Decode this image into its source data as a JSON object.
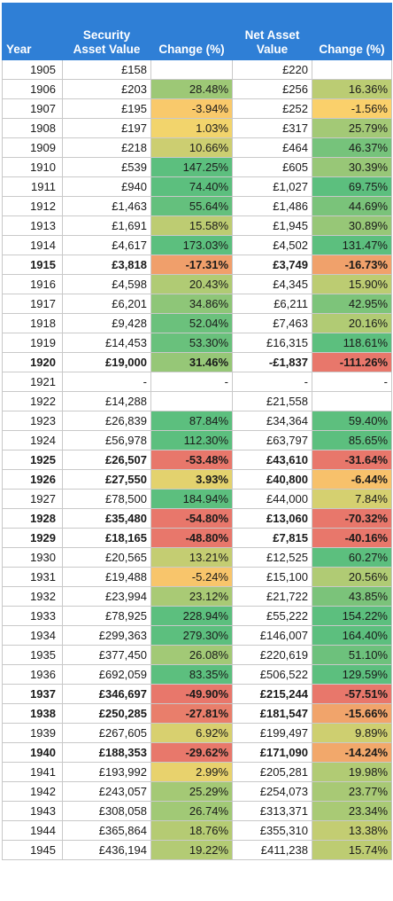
{
  "chart_data": {
    "type": "table",
    "columns": [
      "Year",
      "Security Asset Value",
      "Change (%)",
      "Net Asset Value",
      "Change (%)"
    ],
    "rows": [
      {
        "y": "1905",
        "sav": "£158",
        "savc": "",
        "nav": "£220",
        "navc": "",
        "b": false
      },
      {
        "y": "1906",
        "sav": "£203",
        "savc": "28.48%",
        "nav": "£256",
        "navc": "16.36%",
        "b": false
      },
      {
        "y": "1907",
        "sav": "£195",
        "savc": "-3.94%",
        "nav": "£252",
        "navc": "-1.56%",
        "b": false
      },
      {
        "y": "1908",
        "sav": "£197",
        "savc": "1.03%",
        "nav": "£317",
        "navc": "25.79%",
        "b": false
      },
      {
        "y": "1909",
        "sav": "£218",
        "savc": "10.66%",
        "nav": "£464",
        "navc": "46.37%",
        "b": false
      },
      {
        "y": "1910",
        "sav": "£539",
        "savc": "147.25%",
        "nav": "£605",
        "navc": "30.39%",
        "b": false
      },
      {
        "y": "1911",
        "sav": "£940",
        "savc": "74.40%",
        "nav": "£1,027",
        "navc": "69.75%",
        "b": false
      },
      {
        "y": "1912",
        "sav": "£1,463",
        "savc": "55.64%",
        "nav": "£1,486",
        "navc": "44.69%",
        "b": false
      },
      {
        "y": "1913",
        "sav": "£1,691",
        "savc": "15.58%",
        "nav": "£1,945",
        "navc": "30.89%",
        "b": false
      },
      {
        "y": "1914",
        "sav": "£4,617",
        "savc": "173.03%",
        "nav": "£4,502",
        "navc": "131.47%",
        "b": false
      },
      {
        "y": "1915",
        "sav": "£3,818",
        "savc": "-17.31%",
        "nav": "£3,749",
        "navc": "-16.73%",
        "b": true
      },
      {
        "y": "1916",
        "sav": "£4,598",
        "savc": "20.43%",
        "nav": "£4,345",
        "navc": "15.90%",
        "b": false
      },
      {
        "y": "1917",
        "sav": "£6,201",
        "savc": "34.86%",
        "nav": "£6,211",
        "navc": "42.95%",
        "b": false
      },
      {
        "y": "1918",
        "sav": "£9,428",
        "savc": "52.04%",
        "nav": "£7,463",
        "navc": "20.16%",
        "b": false
      },
      {
        "y": "1919",
        "sav": "£14,453",
        "savc": "53.30%",
        "nav": "£16,315",
        "navc": "118.61%",
        "b": false
      },
      {
        "y": "1920",
        "sav": "£19,000",
        "savc": "31.46%",
        "nav": "-£1,837",
        "navc": "-111.26%",
        "b": true
      },
      {
        "y": "1921",
        "sav": "-",
        "savc": "-",
        "nav": "-",
        "navc": "-",
        "b": false
      },
      {
        "y": "1922",
        "sav": "£14,288",
        "savc": "",
        "nav": "£21,558",
        "navc": "",
        "b": false
      },
      {
        "y": "1923",
        "sav": "£26,839",
        "savc": "87.84%",
        "nav": "£34,364",
        "navc": "59.40%",
        "b": false
      },
      {
        "y": "1924",
        "sav": "£56,978",
        "savc": "112.30%",
        "nav": "£63,797",
        "navc": "85.65%",
        "b": false
      },
      {
        "y": "1925",
        "sav": "£26,507",
        "savc": "-53.48%",
        "nav": "£43,610",
        "navc": "-31.64%",
        "b": true
      },
      {
        "y": "1926",
        "sav": "£27,550",
        "savc": "3.93%",
        "nav": "£40,800",
        "navc": "-6.44%",
        "b": true
      },
      {
        "y": "1927",
        "sav": "£78,500",
        "savc": "184.94%",
        "nav": "£44,000",
        "navc": "7.84%",
        "b": false
      },
      {
        "y": "1928",
        "sav": "£35,480",
        "savc": "-54.80%",
        "nav": "£13,060",
        "navc": "-70.32%",
        "b": true
      },
      {
        "y": "1929",
        "sav": "£18,165",
        "savc": "-48.80%",
        "nav": "£7,815",
        "navc": "-40.16%",
        "b": true
      },
      {
        "y": "1930",
        "sav": "£20,565",
        "savc": "13.21%",
        "nav": "£12,525",
        "navc": "60.27%",
        "b": false
      },
      {
        "y": "1931",
        "sav": "£19,488",
        "savc": "-5.24%",
        "nav": "£15,100",
        "navc": "20.56%",
        "b": false
      },
      {
        "y": "1932",
        "sav": "£23,994",
        "savc": "23.12%",
        "nav": "£21,722",
        "navc": "43.85%",
        "b": false
      },
      {
        "y": "1933",
        "sav": "£78,925",
        "savc": "228.94%",
        "nav": "£55,222",
        "navc": "154.22%",
        "b": false
      },
      {
        "y": "1934",
        "sav": "£299,363",
        "savc": "279.30%",
        "nav": "£146,007",
        "navc": "164.40%",
        "b": false
      },
      {
        "y": "1935",
        "sav": "£377,450",
        "savc": "26.08%",
        "nav": "£220,619",
        "navc": "51.10%",
        "b": false
      },
      {
        "y": "1936",
        "sav": "£692,059",
        "savc": "83.35%",
        "nav": "£506,522",
        "navc": "129.59%",
        "b": false
      },
      {
        "y": "1937",
        "sav": "£346,697",
        "savc": "-49.90%",
        "nav": "£215,244",
        "navc": "-57.51%",
        "b": true
      },
      {
        "y": "1938",
        "sav": "£250,285",
        "savc": "-27.81%",
        "nav": "£181,547",
        "navc": "-15.66%",
        "b": true
      },
      {
        "y": "1939",
        "sav": "£267,605",
        "savc": "6.92%",
        "nav": "£199,497",
        "navc": "9.89%",
        "b": false
      },
      {
        "y": "1940",
        "sav": "£188,353",
        "savc": "-29.62%",
        "nav": "£171,090",
        "navc": "-14.24%",
        "b": true
      },
      {
        "y": "1941",
        "sav": "£193,992",
        "savc": "2.99%",
        "nav": "£205,281",
        "navc": "19.98%",
        "b": false
      },
      {
        "y": "1942",
        "sav": "£243,057",
        "savc": "25.29%",
        "nav": "£254,073",
        "navc": "23.77%",
        "b": false
      },
      {
        "y": "1943",
        "sav": "£308,058",
        "savc": "26.74%",
        "nav": "£313,371",
        "navc": "23.34%",
        "b": false
      },
      {
        "y": "1944",
        "sav": "£365,864",
        "savc": "18.76%",
        "nav": "£355,310",
        "navc": "13.38%",
        "b": false
      },
      {
        "y": "1945",
        "sav": "£436,194",
        "savc": "19.22%",
        "nav": "£411,238",
        "navc": "15.74%",
        "b": false
      }
    ]
  },
  "colors": {
    "header_bg": "#2f7fd6",
    "scale_red": "#e8776b",
    "scale_yellow": "#fbd56b",
    "scale_green": "#5cbf7e"
  }
}
